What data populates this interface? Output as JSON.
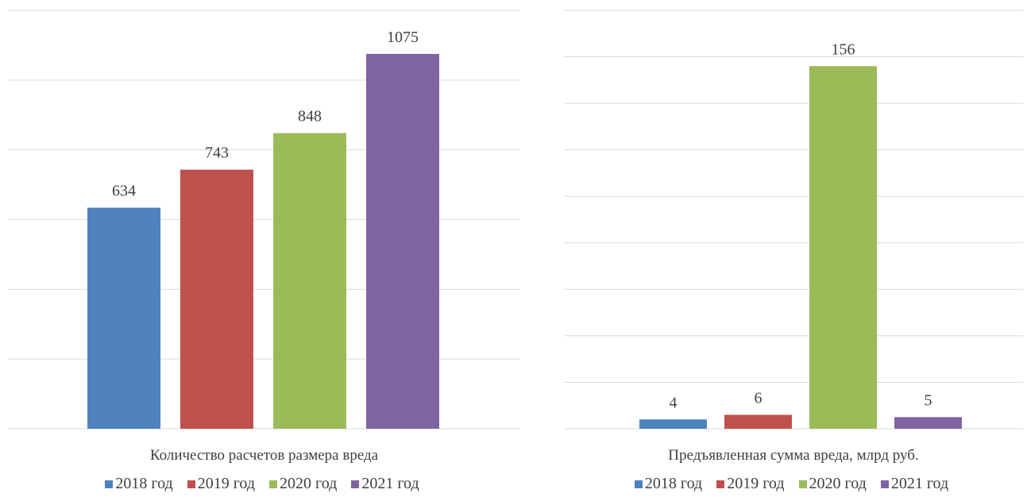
{
  "chart_data": [
    {
      "type": "bar",
      "title": "",
      "category_label": "Количество расчетов размера вреда",
      "categories": [
        "Количество расчетов размера вреда"
      ],
      "series": [
        {
          "name": "2018 год",
          "values": [
            634
          ],
          "color": "#4f81bd"
        },
        {
          "name": "2019 год",
          "values": [
            743
          ],
          "color": "#c0504d"
        },
        {
          "name": "2020 год",
          "values": [
            848
          ],
          "color": "#9bbb59"
        },
        {
          "name": "2021 год",
          "values": [
            1075
          ],
          "color": "#8064a2"
        }
      ],
      "ylim": [
        0,
        1200
      ],
      "grid_step": 200,
      "grid": true,
      "legend_position": "bottom",
      "data_labels": [
        "634",
        "743",
        "848",
        "1075"
      ]
    },
    {
      "type": "bar",
      "title": "",
      "category_label": "Предъявленная сумма вреда, млрд руб.",
      "categories": [
        "Предъявленная сумма вреда, млрд руб."
      ],
      "series": [
        {
          "name": "2018 год",
          "values": [
            4
          ],
          "color": "#4f81bd"
        },
        {
          "name": "2019 год",
          "values": [
            6
          ],
          "color": "#c0504d"
        },
        {
          "name": "2020 год",
          "values": [
            156
          ],
          "color": "#9bbb59"
        },
        {
          "name": "2021 год",
          "values": [
            5
          ],
          "color": "#8064a2"
        }
      ],
      "ylim": [
        0,
        180
      ],
      "grid_step": 20,
      "grid": true,
      "legend_position": "bottom",
      "data_labels": [
        "4",
        "6",
        "156",
        "5"
      ]
    }
  ]
}
